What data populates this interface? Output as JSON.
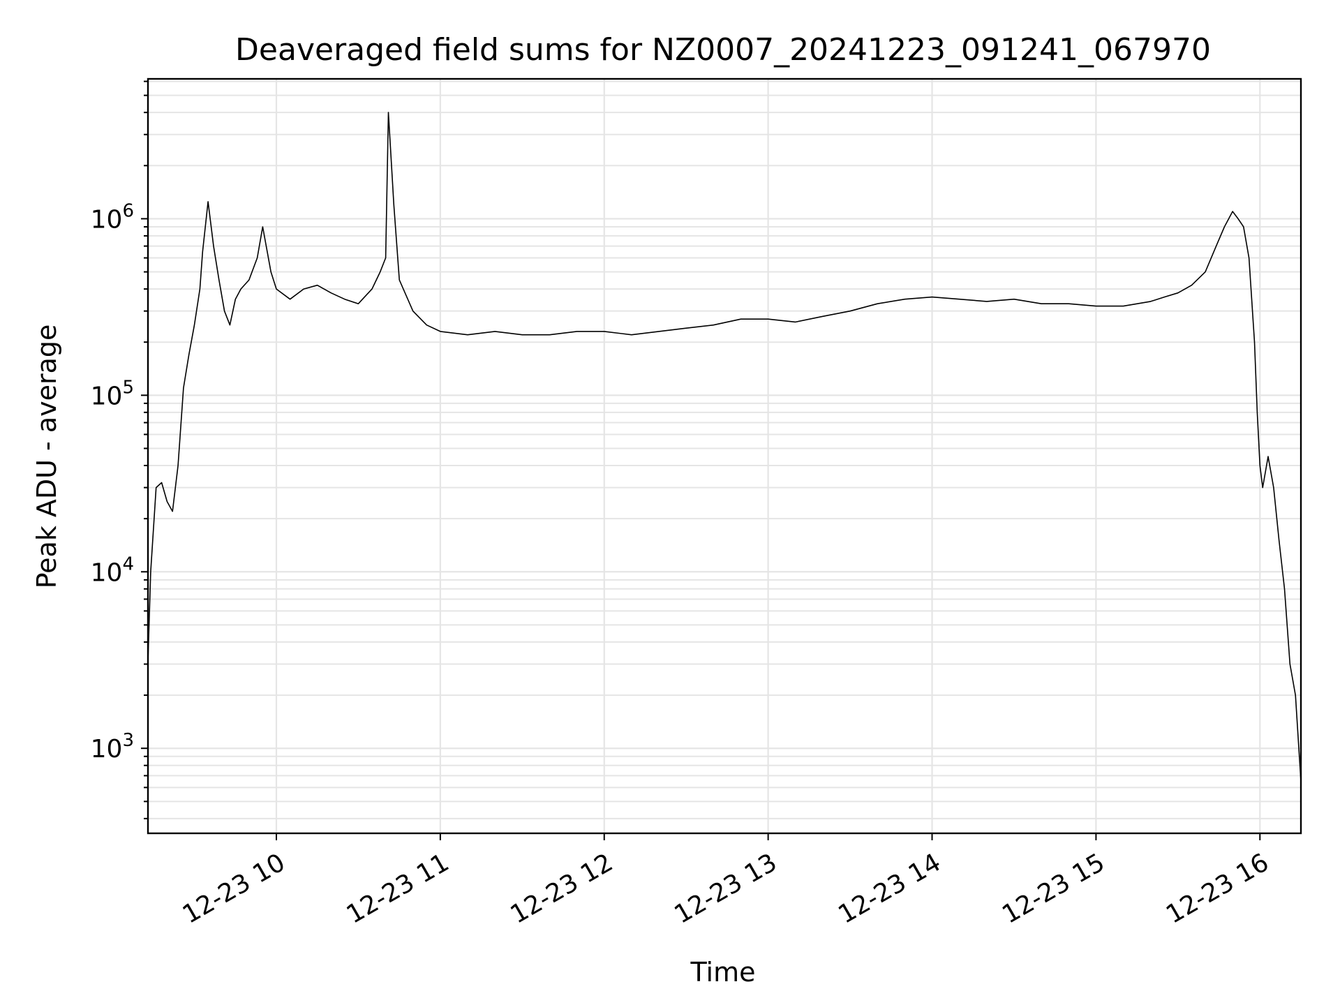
{
  "chart_data": {
    "type": "line",
    "title": "Deaveraged field sums for NZ0007_20241223_091241_067970",
    "xlabel": "Time",
    "ylabel": "Peak ADU - average",
    "x_scale": "time",
    "y_scale": "log",
    "xlim": [
      "2024-12-23 09:13",
      "2024-12-23 16:15"
    ],
    "ylim": [
      330,
      6200000
    ],
    "grid": true,
    "x_ticks": [
      "12-23 10",
      "12-23 11",
      "12-23 12",
      "12-23 13",
      "12-23 14",
      "12-23 15",
      "12-23 16"
    ],
    "y_ticks": [
      {
        "base": "10",
        "exp": "3",
        "value": 1000
      },
      {
        "base": "10",
        "exp": "4",
        "value": 10000
      },
      {
        "base": "10",
        "exp": "5",
        "value": 100000
      },
      {
        "base": "10",
        "exp": "6",
        "value": 1000000
      }
    ],
    "line_color": "#000000",
    "grid_color": "#e5e5e5",
    "series": [
      {
        "x": [
          "2024-12-23 09:13",
          "2024-12-23 09:14",
          "2024-12-23 09:16",
          "2024-12-23 09:18",
          "2024-12-23 09:20",
          "2024-12-23 09:22",
          "2024-12-23 09:24",
          "2024-12-23 09:26",
          "2024-12-23 09:28",
          "2024-12-23 09:30",
          "2024-12-23 09:32",
          "2024-12-23 09:33",
          "2024-12-23 09:35",
          "2024-12-23 09:37",
          "2024-12-23 09:39",
          "2024-12-23 09:41",
          "2024-12-23 09:43",
          "2024-12-23 09:45",
          "2024-12-23 09:47",
          "2024-12-23 09:50",
          "2024-12-23 09:53",
          "2024-12-23 09:55",
          "2024-12-23 09:58",
          "2024-12-23 10:00",
          "2024-12-23 10:05",
          "2024-12-23 10:10",
          "2024-12-23 10:15",
          "2024-12-23 10:20",
          "2024-12-23 10:25",
          "2024-12-23 10:30",
          "2024-12-23 10:35",
          "2024-12-23 10:38",
          "2024-12-23 10:40",
          "2024-12-23 10:41",
          "2024-12-23 10:43",
          "2024-12-23 10:45",
          "2024-12-23 10:50",
          "2024-12-23 10:55",
          "2024-12-23 11:00",
          "2024-12-23 11:10",
          "2024-12-23 11:20",
          "2024-12-23 11:30",
          "2024-12-23 11:40",
          "2024-12-23 11:50",
          "2024-12-23 12:00",
          "2024-12-23 12:10",
          "2024-12-23 12:20",
          "2024-12-23 12:30",
          "2024-12-23 12:40",
          "2024-12-23 12:50",
          "2024-12-23 13:00",
          "2024-12-23 13:10",
          "2024-12-23 13:20",
          "2024-12-23 13:30",
          "2024-12-23 13:40",
          "2024-12-23 13:50",
          "2024-12-23 14:00",
          "2024-12-23 14:10",
          "2024-12-23 14:20",
          "2024-12-23 14:30",
          "2024-12-23 14:40",
          "2024-12-23 14:50",
          "2024-12-23 15:00",
          "2024-12-23 15:10",
          "2024-12-23 15:20",
          "2024-12-23 15:25",
          "2024-12-23 15:30",
          "2024-12-23 15:35",
          "2024-12-23 15:40",
          "2024-12-23 15:44",
          "2024-12-23 15:47",
          "2024-12-23 15:50",
          "2024-12-23 15:52",
          "2024-12-23 15:54",
          "2024-12-23 15:56",
          "2024-12-23 15:58",
          "2024-12-23 15:59",
          "2024-12-23 16:00",
          "2024-12-23 16:01",
          "2024-12-23 16:03",
          "2024-12-23 16:05",
          "2024-12-23 16:07",
          "2024-12-23 16:09",
          "2024-12-23 16:11",
          "2024-12-23 16:13",
          "2024-12-23 16:15"
        ],
        "y": [
          3100,
          10000,
          30000,
          32000,
          25000,
          22000,
          40000,
          110000,
          170000,
          250000,
          400000,
          650000,
          1250000,
          700000,
          450000,
          300000,
          250000,
          350000,
          400000,
          450000,
          600000,
          900000,
          500000,
          400000,
          350000,
          400000,
          420000,
          380000,
          350000,
          330000,
          400000,
          500000,
          600000,
          4000000,
          1200000,
          450000,
          300000,
          250000,
          230000,
          220000,
          230000,
          220000,
          220000,
          230000,
          230000,
          220000,
          230000,
          240000,
          250000,
          270000,
          270000,
          260000,
          280000,
          300000,
          330000,
          350000,
          360000,
          350000,
          340000,
          350000,
          330000,
          330000,
          320000,
          320000,
          340000,
          360000,
          380000,
          420000,
          500000,
          700000,
          900000,
          1100000,
          1000000,
          900000,
          600000,
          200000,
          80000,
          40000,
          30000,
          45000,
          30000,
          15000,
          8000,
          3000,
          2000,
          650
        ]
      }
    ]
  }
}
